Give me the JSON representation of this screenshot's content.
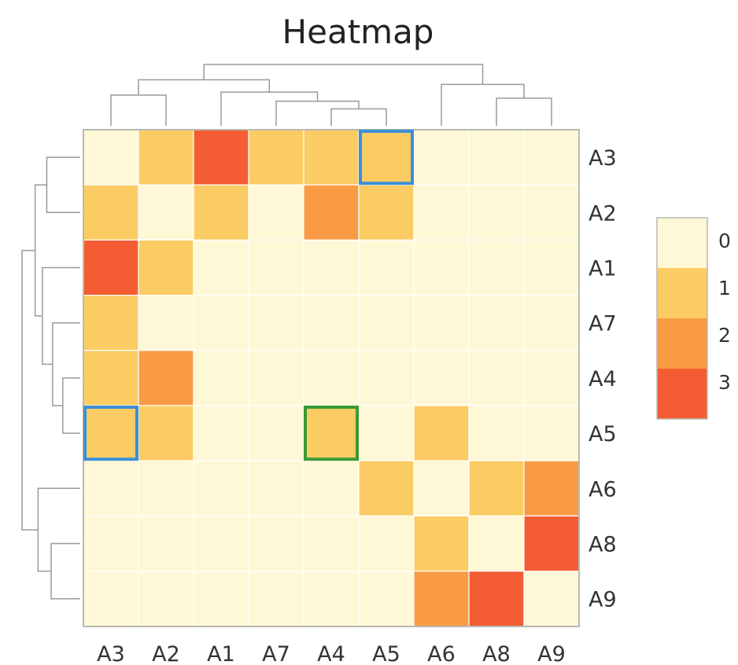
{
  "chart_data": {
    "type": "heatmap",
    "title": "Heatmap",
    "columns": [
      "A3",
      "A2",
      "A1",
      "A7",
      "A4",
      "A5",
      "A6",
      "A8",
      "A9"
    ],
    "rows": [
      "A3",
      "A2",
      "A1",
      "A7",
      "A4",
      "A5",
      "A6",
      "A8",
      "A9"
    ],
    "values": [
      [
        0,
        1,
        3,
        1,
        1,
        1,
        0,
        0,
        0
      ],
      [
        1,
        0,
        1,
        0,
        2,
        1,
        0,
        0,
        0
      ],
      [
        3,
        1,
        0,
        0,
        0,
        0,
        0,
        0,
        0
      ],
      [
        1,
        0,
        0,
        0,
        0,
        0,
        0,
        0,
        0
      ],
      [
        1,
        2,
        0,
        0,
        0,
        0,
        0,
        0,
        0
      ],
      [
        1,
        1,
        0,
        0,
        1,
        0,
        1,
        0,
        0
      ],
      [
        0,
        0,
        0,
        0,
        0,
        1,
        0,
        1,
        2
      ],
      [
        0,
        0,
        0,
        0,
        0,
        0,
        1,
        0,
        3
      ],
      [
        0,
        0,
        0,
        0,
        0,
        0,
        2,
        3,
        0
      ]
    ],
    "color_scale": {
      "levels": [
        0,
        1,
        2,
        3
      ],
      "labels": [
        "0",
        "1",
        "2",
        "3"
      ],
      "colors": [
        "#fff8d6",
        "#fbcc63",
        "#f99a45",
        "#f45c33"
      ]
    },
    "highlights": [
      {
        "row": "A3",
        "column": "A5",
        "color": "#3b8fd6"
      },
      {
        "row": "A5",
        "column": "A3",
        "color": "#3b8fd6"
      },
      {
        "row": "A5",
        "column": "A4",
        "color": "#3a9a36"
      }
    ],
    "dendrograms": {
      "columns": "top",
      "rows": "left"
    },
    "legend_placement": "right",
    "grid": false
  }
}
